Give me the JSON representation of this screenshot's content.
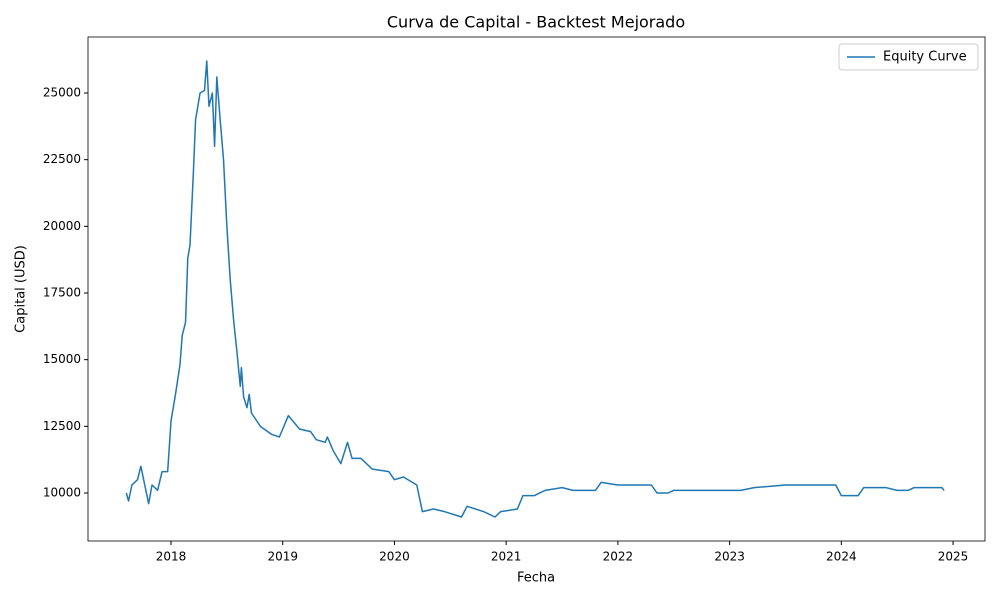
{
  "chart_data": {
    "type": "line",
    "title": "Curva de Capital - Backtest Mejorado",
    "x_label": "Fecha",
    "y_label": "Capital (USD)",
    "x": [
      2017.6,
      2017.62,
      2017.65,
      2017.7,
      2017.73,
      2017.76,
      2017.8,
      2017.83,
      2017.88,
      2017.92,
      2017.97,
      2018.0,
      2018.04,
      2018.08,
      2018.1,
      2018.13,
      2018.15,
      2018.17,
      2018.2,
      2018.22,
      2018.26,
      2018.3,
      2018.32,
      2018.34,
      2018.37,
      2018.39,
      2018.41,
      2018.44,
      2018.47,
      2018.5,
      2018.53,
      2018.56,
      2018.59,
      2018.62,
      2018.63,
      2018.65,
      2018.68,
      2018.7,
      2018.72,
      2018.8,
      2018.9,
      2018.97,
      2019.05,
      2019.15,
      2019.25,
      2019.3,
      2019.38,
      2019.4,
      2019.45,
      2019.52,
      2019.58,
      2019.62,
      2019.7,
      2019.8,
      2019.95,
      2020.0,
      2020.08,
      2020.2,
      2020.25,
      2020.35,
      2020.45,
      2020.6,
      2020.65,
      2020.8,
      2020.9,
      2020.95,
      2021.1,
      2021.15,
      2021.25,
      2021.35,
      2021.5,
      2021.6,
      2021.8,
      2021.85,
      2022.0,
      2022.3,
      2022.35,
      2022.45,
      2022.5,
      2022.9,
      2023.1,
      2023.22,
      2023.5,
      2023.95,
      2024.0,
      2024.15,
      2024.2,
      2024.4,
      2024.5,
      2024.6,
      2024.65,
      2024.9,
      2024.92
    ],
    "series": [
      {
        "name": "Equity Curve",
        "color": "#1f77b4",
        "values": [
          10000,
          9700,
          10300,
          10500,
          11000,
          10400,
          9600,
          10300,
          10100,
          10800,
          10800,
          12700,
          13700,
          14800,
          15900,
          16400,
          18800,
          19300,
          22000,
          24000,
          25000,
          25100,
          26200,
          24500,
          25000,
          23000,
          25600,
          24000,
          22500,
          20000,
          18000,
          16500,
          15300,
          14000,
          14700,
          13600,
          13200,
          13700,
          13000,
          12500,
          12200,
          12100,
          12900,
          12400,
          12300,
          12000,
          11900,
          12100,
          11600,
          11100,
          11900,
          11300,
          11300,
          10900,
          10800,
          10500,
          10600,
          10300,
          9300,
          9400,
          9300,
          9100,
          9500,
          9300,
          9100,
          9300,
          9400,
          9900,
          9900,
          10100,
          10200,
          10100,
          10100,
          10400,
          10300,
          10300,
          10000,
          10000,
          10100,
          10100,
          10100,
          10200,
          10300,
          10300,
          9900,
          9900,
          10200,
          10200,
          10100,
          10100,
          10200,
          10200,
          10100
        ]
      }
    ],
    "xlim": [
      2017.257,
      2025.286
    ],
    "xticks": [
      2018,
      2019,
      2020,
      2021,
      2022,
      2023,
      2024,
      2025
    ],
    "ylim": [
      8200,
      27100
    ],
    "yticks": [
      10000,
      12500,
      15000,
      17500,
      20000,
      22500,
      25000
    ],
    "legend": "upper right",
    "grid": false
  }
}
